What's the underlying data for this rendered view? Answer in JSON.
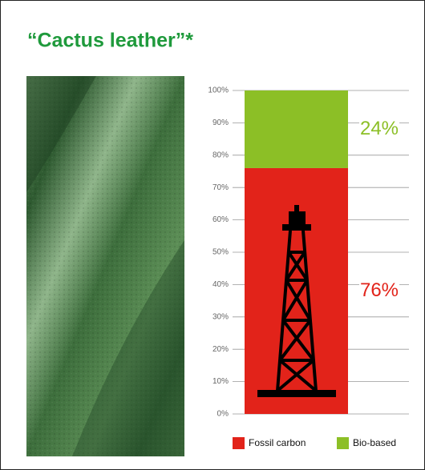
{
  "chart_data": {
    "type": "stacked_bar",
    "title": "“Cactus leather”*",
    "categories": [
      null
    ],
    "series": [
      {
        "name": "Fossil carbon",
        "color": "#e2231a",
        "values": [
          76
        ],
        "value_labels": [
          "76%"
        ]
      },
      {
        "name": "Bio-based",
        "color": "#8cbf26",
        "values": [
          24
        ],
        "value_labels": [
          "24%"
        ]
      }
    ],
    "ylim": [
      0,
      100
    ],
    "yticks": [
      {
        "value": 0,
        "label": "0%"
      },
      {
        "value": 10,
        "label": "10%"
      },
      {
        "value": 20,
        "label": "20%"
      },
      {
        "value": 30,
        "label": "30%"
      },
      {
        "value": 40,
        "label": "40%"
      },
      {
        "value": 50,
        "label": "50%"
      },
      {
        "value": 60,
        "label": "60%"
      },
      {
        "value": 70,
        "label": "70%"
      },
      {
        "value": 80,
        "label": "80%"
      },
      {
        "value": 90,
        "label": "90%"
      },
      {
        "value": 100,
        "label": "100%"
      }
    ],
    "grid": true,
    "legend": "bottom"
  }
}
